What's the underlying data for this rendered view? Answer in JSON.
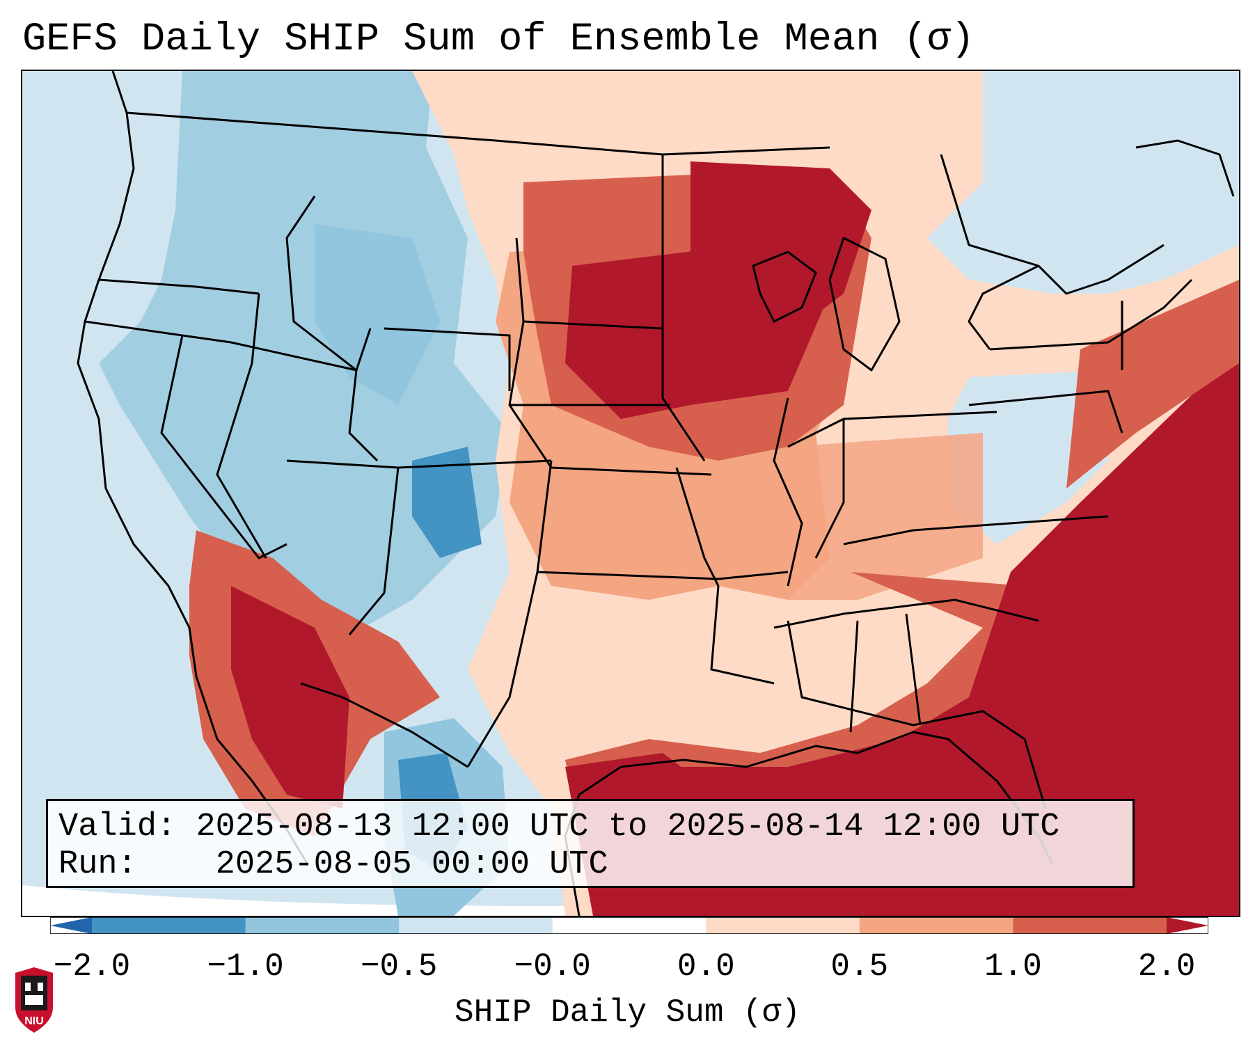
{
  "title": "GEFS Daily SHIP Sum of Ensemble Mean (σ)",
  "info": {
    "valid_label": "Valid:",
    "valid_value": "2025-08-13 12:00 UTC to 2025-08-14 12:00 UTC",
    "run_label": "Run:",
    "run_value": "2025-08-05 00:00 UTC"
  },
  "colorbar": {
    "label": "SHIP Daily Sum (σ)",
    "ticks": [
      "−2.0",
      "−1.0",
      "−0.5",
      "−0.0",
      "0.0",
      "0.5",
      "1.0",
      "2.0"
    ],
    "colors": [
      "#2166ac",
      "#4393c3",
      "#92c5de",
      "#d1e5f0",
      "#ffffff",
      "#fddbc7",
      "#f4a582",
      "#d6604d",
      "#b2182b"
    ]
  },
  "logo": {
    "text": "NIU",
    "colors": {
      "shield": "#c8102e",
      "tower": "#1a1a1a"
    }
  },
  "map_colors": {
    "ocean_neutral": "#d1e5f0",
    "strong_negative": "#4393c3",
    "moderate_negative": "#92c5de",
    "weak_positive": "#fddbc7",
    "moderate_positive": "#f4a582",
    "high_positive": "#d6604d",
    "extreme_positive": "#b2182b"
  }
}
